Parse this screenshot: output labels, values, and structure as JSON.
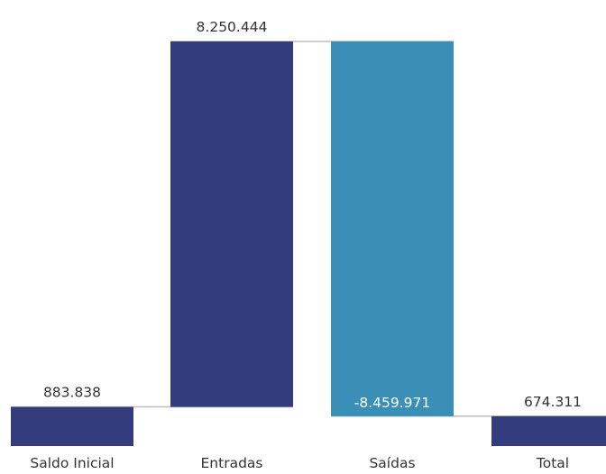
{
  "chart_data": {
    "type": "waterfall",
    "title": "",
    "xlabel": "",
    "ylabel": "",
    "categories": [
      "Saldo Inicial",
      "Entradas",
      "Saídas",
      "Total"
    ],
    "values": [
      883838,
      8250444,
      -8459971,
      674311
    ],
    "value_labels": [
      "883.838",
      "8.250.444",
      "-8.459.971",
      "674.311"
    ],
    "bar_kinds": [
      "total",
      "increase",
      "decrease",
      "total"
    ],
    "colors": {
      "total": "#343c7e",
      "increase": "#343c7e",
      "decrease": "#3a8fb7",
      "connector": "#bdbdbd",
      "label": "#333333",
      "label_inside": "#ffffff"
    },
    "ylim": [
      0,
      9134282
    ],
    "grid": false,
    "legend": "none"
  }
}
